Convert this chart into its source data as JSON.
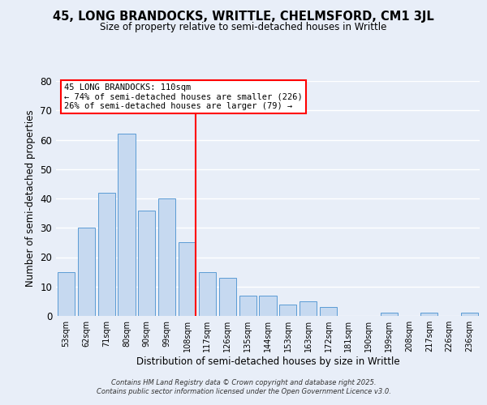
{
  "title": "45, LONG BRANDOCKS, WRITTLE, CHELMSFORD, CM1 3JL",
  "subtitle": "Size of property relative to semi-detached houses in Writtle",
  "xlabel": "Distribution of semi-detached houses by size in Writtle",
  "ylabel": "Number of semi-detached properties",
  "bar_labels": [
    "53sqm",
    "62sqm",
    "71sqm",
    "80sqm",
    "90sqm",
    "99sqm",
    "108sqm",
    "117sqm",
    "126sqm",
    "135sqm",
    "144sqm",
    "153sqm",
    "163sqm",
    "172sqm",
    "181sqm",
    "190sqm",
    "199sqm",
    "208sqm",
    "217sqm",
    "226sqm",
    "236sqm"
  ],
  "bar_values": [
    15,
    30,
    42,
    62,
    36,
    40,
    25,
    15,
    13,
    7,
    7,
    4,
    5,
    3,
    0,
    0,
    1,
    0,
    1,
    0,
    1
  ],
  "bar_color": "#c6d9f0",
  "bar_edgecolor": "#5b9bd5",
  "vline_x_index": 6,
  "vline_color": "red",
  "annotation_title": "45 LONG BRANDOCKS: 110sqm",
  "annotation_line1": "← 74% of semi-detached houses are smaller (226)",
  "annotation_line2": "26% of semi-detached houses are larger (79) →",
  "annotation_box_edgecolor": "red",
  "annotation_box_facecolor": "white",
  "ylim": [
    0,
    80
  ],
  "yticks": [
    0,
    10,
    20,
    30,
    40,
    50,
    60,
    70,
    80
  ],
  "background_color": "#e8eef8",
  "grid_color": "white",
  "footer1": "Contains HM Land Registry data © Crown copyright and database right 2025.",
  "footer2": "Contains public sector information licensed under the Open Government Licence v3.0."
}
